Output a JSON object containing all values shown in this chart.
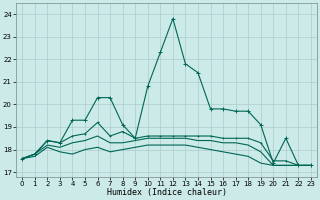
{
  "background_color": "#cceae7",
  "grid_color": "#aacccc",
  "line_color": "#006655",
  "xlabel": "Humidex (Indice chaleur)",
  "xlim": [
    -0.5,
    23.5
  ],
  "ylim": [
    16.8,
    24.5
  ],
  "yticks": [
    17,
    18,
    19,
    20,
    21,
    22,
    23,
    24
  ],
  "xticks": [
    0,
    1,
    2,
    3,
    4,
    5,
    6,
    7,
    8,
    9,
    10,
    11,
    12,
    13,
    14,
    15,
    16,
    17,
    18,
    19,
    20,
    21,
    22,
    23
  ],
  "line1_x": [
    0,
    1,
    2,
    3,
    4,
    5,
    6,
    7,
    8,
    9,
    10,
    11,
    12,
    13,
    14,
    15,
    16,
    17,
    18,
    19,
    20,
    21,
    22,
    23
  ],
  "line1_y": [
    17.6,
    17.8,
    18.4,
    18.3,
    19.3,
    19.3,
    20.3,
    20.3,
    19.1,
    18.5,
    20.8,
    22.3,
    23.8,
    21.8,
    21.4,
    19.8,
    19.8,
    19.7,
    19.7,
    19.1,
    17.4,
    18.5,
    17.3,
    17.3
  ],
  "line2_x": [
    0,
    1,
    2,
    3,
    4,
    5,
    6,
    7,
    8,
    9,
    10,
    11,
    12,
    13,
    14,
    15,
    16,
    17,
    18,
    19,
    20,
    21,
    22,
    23
  ],
  "line2_y": [
    17.6,
    17.8,
    18.4,
    18.3,
    18.6,
    18.7,
    19.2,
    18.6,
    18.8,
    18.5,
    18.6,
    18.6,
    18.6,
    18.6,
    18.6,
    18.6,
    18.5,
    18.5,
    18.5,
    18.3,
    17.5,
    17.5,
    17.3,
    17.3
  ],
  "line3_x": [
    0,
    1,
    2,
    3,
    4,
    5,
    6,
    7,
    8,
    9,
    10,
    11,
    12,
    13,
    14,
    15,
    16,
    17,
    18,
    19,
    20,
    21,
    22,
    23
  ],
  "line3_y": [
    17.6,
    17.8,
    18.2,
    18.1,
    18.3,
    18.4,
    18.6,
    18.3,
    18.3,
    18.4,
    18.5,
    18.5,
    18.5,
    18.5,
    18.4,
    18.4,
    18.3,
    18.3,
    18.2,
    17.9,
    17.3,
    17.3,
    17.3,
    17.3
  ],
  "line4_x": [
    0,
    1,
    2,
    3,
    4,
    5,
    6,
    7,
    8,
    9,
    10,
    11,
    12,
    13,
    14,
    15,
    16,
    17,
    18,
    19,
    20,
    21,
    22,
    23
  ],
  "line4_y": [
    17.6,
    17.7,
    18.1,
    17.9,
    17.8,
    18.0,
    18.1,
    17.9,
    18.0,
    18.1,
    18.2,
    18.2,
    18.2,
    18.2,
    18.1,
    18.0,
    17.9,
    17.8,
    17.7,
    17.4,
    17.3,
    17.3,
    17.3,
    17.3
  ]
}
